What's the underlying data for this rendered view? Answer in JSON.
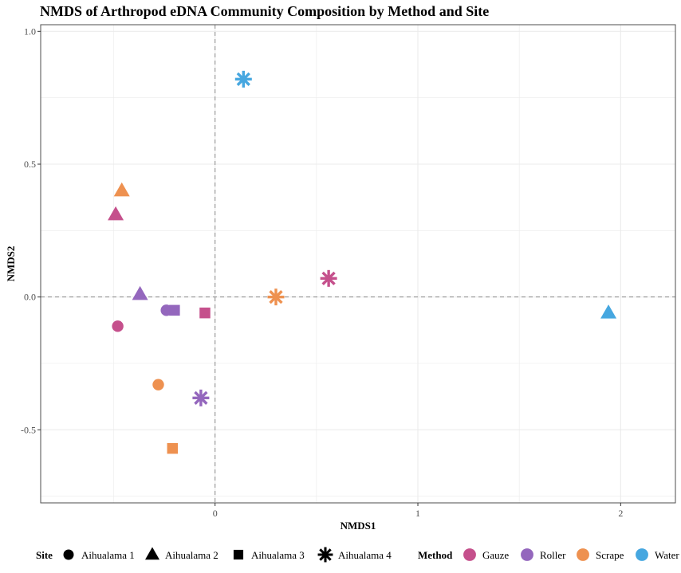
{
  "chart_data": {
    "type": "scatter",
    "title": "NMDS of Arthropod eDNA Community Composition by Method and Site",
    "xlabel": "NMDS1",
    "ylabel": "NMDS2",
    "xlim": [
      -0.86,
      2.27
    ],
    "ylim": [
      -0.775,
      1.025
    ],
    "x_ticks": [
      0,
      1,
      2
    ],
    "x_tick_labels": [
      "0",
      "1",
      "2"
    ],
    "y_ticks": [
      -0.5,
      0.0,
      0.5,
      1.0
    ],
    "y_tick_labels": [
      "-0.5",
      "0.0",
      "0.5",
      "1.0"
    ],
    "grid": true,
    "reference_lines": {
      "x": 0,
      "y": 0,
      "style": "dashed"
    },
    "legend": {
      "position": "bottom",
      "site": {
        "title": "Site",
        "entries": [
          {
            "label": "Aihualama 1",
            "shape": "circle"
          },
          {
            "label": "Aihualama 2",
            "shape": "triangle"
          },
          {
            "label": "Aihualama 3",
            "shape": "square"
          },
          {
            "label": "Aihualama 4",
            "shape": "asterisk"
          }
        ]
      },
      "method": {
        "title": "Method",
        "entries": [
          {
            "label": "Gauze",
            "color": "#c5508c"
          },
          {
            "label": "Roller",
            "color": "#9467bd"
          },
          {
            "label": "Scrape",
            "color": "#ee9150"
          },
          {
            "label": "Water",
            "color": "#46a7e0"
          }
        ]
      }
    },
    "points": [
      {
        "site": "Aihualama 4",
        "method": "Water",
        "x": 0.14,
        "y": 0.82
      },
      {
        "site": "Aihualama 2",
        "method": "Scrape",
        "x": -0.46,
        "y": 0.4
      },
      {
        "site": "Aihualama 2",
        "method": "Gauze",
        "x": -0.49,
        "y": 0.31
      },
      {
        "site": "Aihualama 2",
        "method": "Roller",
        "x": -0.37,
        "y": 0.01
      },
      {
        "site": "Aihualama 1",
        "method": "Roller",
        "x": -0.24,
        "y": -0.05
      },
      {
        "site": "Aihualama 3",
        "method": "Roller",
        "x": -0.2,
        "y": -0.05
      },
      {
        "site": "Aihualama 1",
        "method": "Gauze",
        "x": -0.48,
        "y": -0.11
      },
      {
        "site": "Aihualama 3",
        "method": "Gauze",
        "x": -0.05,
        "y": -0.06
      },
      {
        "site": "Aihualama 4",
        "method": "Gauze",
        "x": 0.56,
        "y": 0.07
      },
      {
        "site": "Aihualama 4",
        "method": "Scrape",
        "x": 0.3,
        "y": 0.0
      },
      {
        "site": "Aihualama 2",
        "method": "Water",
        "x": 1.94,
        "y": -0.06
      },
      {
        "site": "Aihualama 1",
        "method": "Scrape",
        "x": -0.28,
        "y": -0.33
      },
      {
        "site": "Aihualama 4",
        "method": "Roller",
        "x": -0.07,
        "y": -0.38
      },
      {
        "site": "Aihualama 3",
        "method": "Scrape",
        "x": -0.21,
        "y": -0.57
      }
    ]
  }
}
